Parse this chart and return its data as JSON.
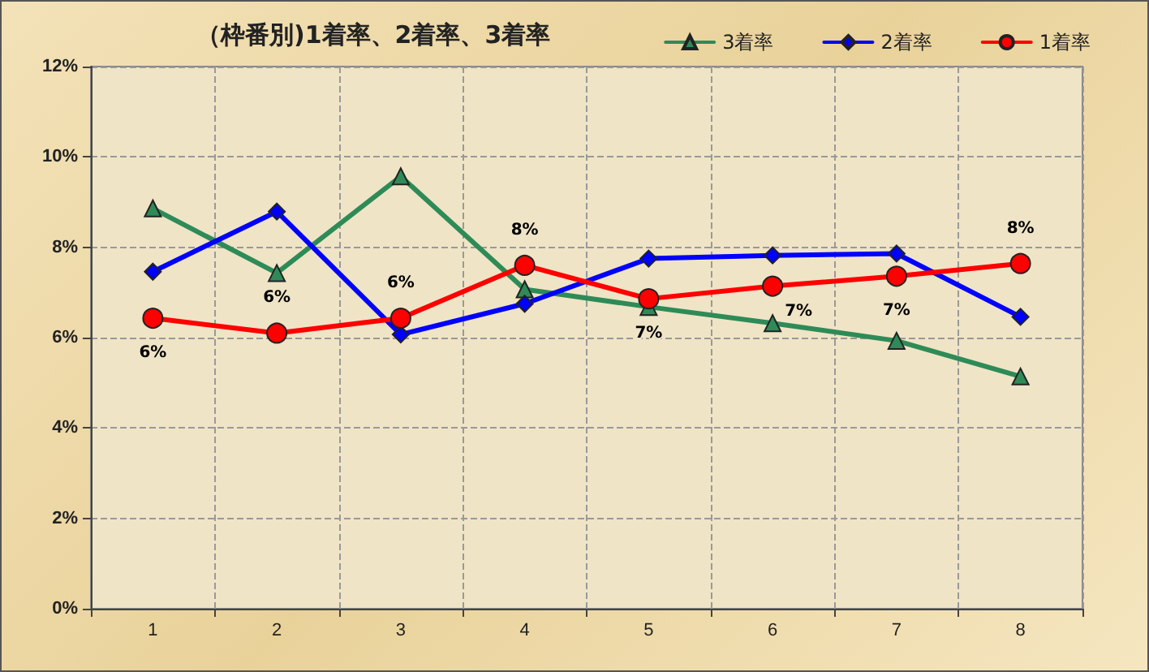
{
  "chart_data": {
    "type": "line",
    "title": "（枠番別)1着率、2着率、3着率",
    "categories": [
      "1",
      "2",
      "3",
      "4",
      "5",
      "6",
      "7",
      "8"
    ],
    "series": [
      {
        "name": "3着率",
        "color": "#2e8b57",
        "marker": "triangle",
        "values": [
          8.86,
          7.43,
          9.57,
          7.07,
          6.68,
          6.32,
          5.93,
          5.14
        ]
      },
      {
        "name": "2着率",
        "color": "#0000ff",
        "marker": "diamond",
        "values": [
          7.46,
          8.79,
          6.07,
          6.75,
          7.75,
          7.82,
          7.86,
          6.46
        ]
      },
      {
        "name": "1着率",
        "color": "#ff0000",
        "marker": "circle",
        "values": [
          6.43,
          6.1,
          6.43,
          7.6,
          6.86,
          7.14,
          7.36,
          7.64
        ],
        "value_labels": [
          "6%",
          "6%",
          "6%",
          "8%",
          "7%",
          "7%",
          "7%",
          "8%"
        ]
      }
    ],
    "ylim": [
      0,
      12
    ],
    "yticks": [
      {
        "value": 0,
        "label": "0%"
      },
      {
        "value": 2,
        "label": "2%"
      },
      {
        "value": 4,
        "label": "4%"
      },
      {
        "value": 6,
        "label": "6%"
      },
      {
        "value": 8,
        "label": "8%"
      },
      {
        "value": 10,
        "label": "10%"
      },
      {
        "value": 12,
        "label": "12%"
      }
    ],
    "grid": true,
    "legend": "top right",
    "line_style": "solid"
  }
}
